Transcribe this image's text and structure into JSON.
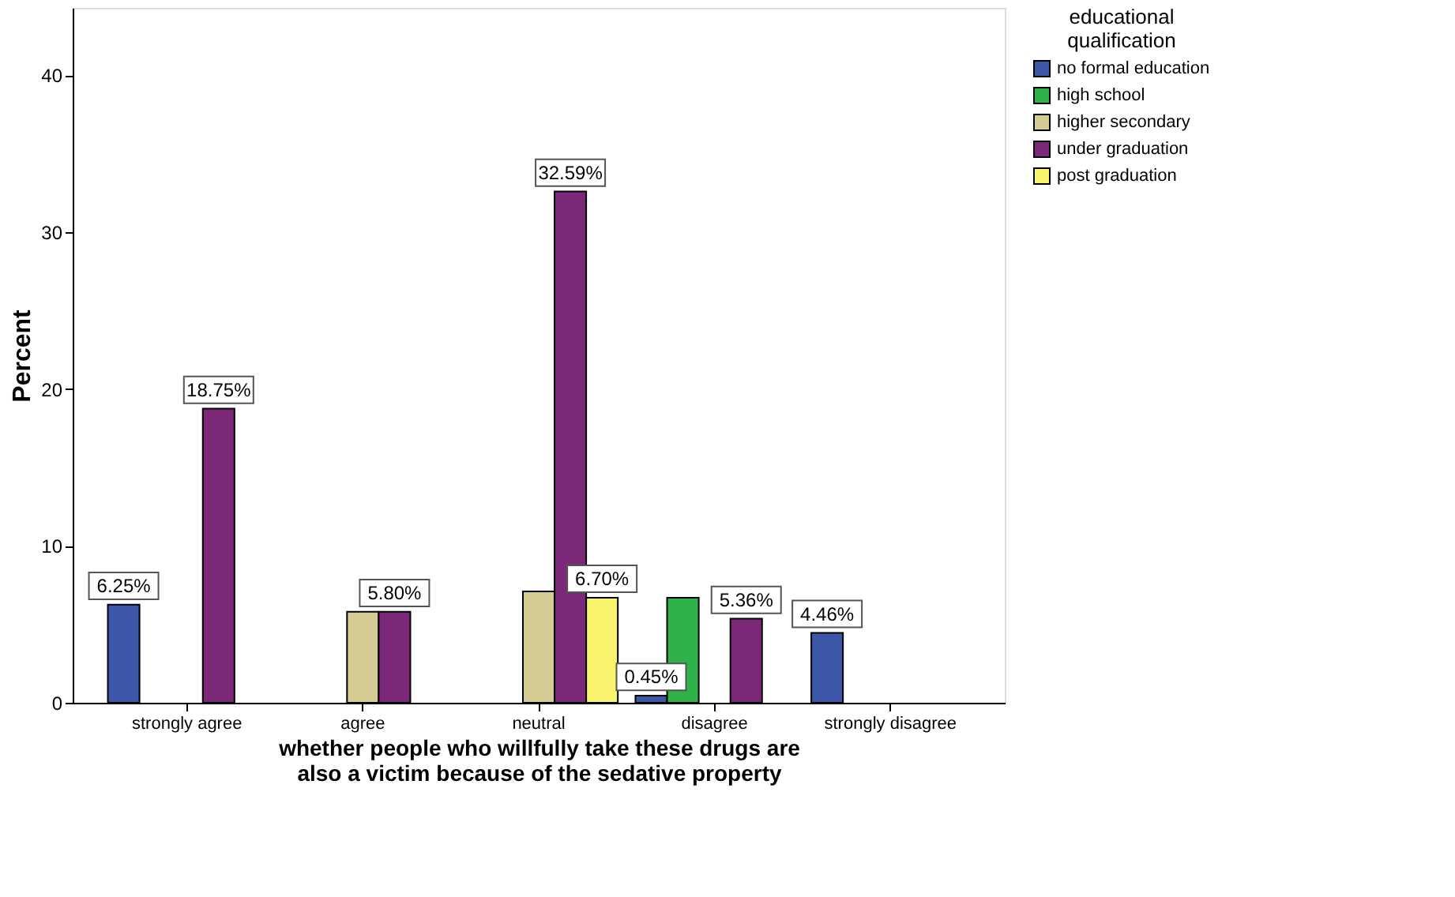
{
  "chart_data": {
    "type": "bar",
    "xlabel": "whether people who willfully take these drugs are also a victim because of the sedative property",
    "ylabel": "Percent",
    "legend_title": "educational qualification",
    "categories": [
      "strongly agree",
      "agree",
      "neutral",
      "disagree",
      "strongly disagree"
    ],
    "series": [
      {
        "name": "no formal education",
        "color": "#3d58a8",
        "values": [
          6.25,
          null,
          null,
          0.45,
          4.46
        ],
        "value_labels": [
          "6.25%",
          null,
          null,
          "0.45%",
          "4.46%"
        ]
      },
      {
        "name": "high school",
        "color": "#2db34a",
        "values": [
          null,
          null,
          null,
          6.7,
          null
        ]
      },
      {
        "name": "higher secondary",
        "color": "#d4cc94",
        "values": [
          null,
          5.8,
          7.1,
          null,
          null
        ]
      },
      {
        "name": "under graduation",
        "color": "#7b2878",
        "values": [
          18.75,
          5.8,
          32.59,
          5.36,
          null
        ],
        "value_labels": [
          "18.75%",
          "5.80%",
          "32.59%",
          "5.36%",
          null
        ]
      },
      {
        "name": "post graduation",
        "color": "#f8f46e",
        "values": [
          null,
          null,
          6.7,
          null,
          null
        ],
        "value_labels": [
          null,
          null,
          "6.70%",
          null,
          null
        ]
      }
    ],
    "ylim": [
      0,
      44.3
    ],
    "yticks": [
      0,
      10,
      20,
      30,
      40
    ],
    "grid": false,
    "legend": "top right"
  }
}
